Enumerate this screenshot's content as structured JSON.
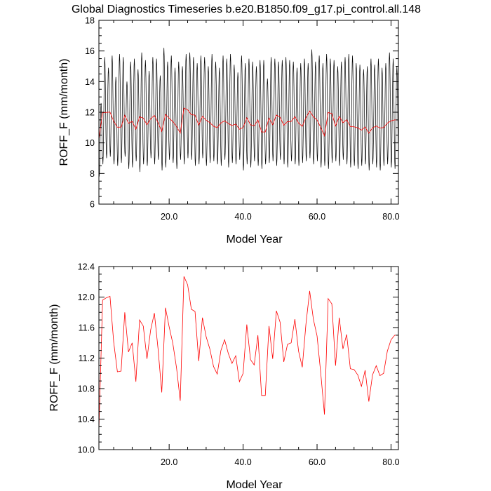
{
  "title": "Global Diagnostics Timeseries b.e20.B1850.f09_g17.pi_control.all.148",
  "colors": {
    "monthly": "#000000",
    "annual": "#ff0000",
    "frame": "#000000"
  },
  "chart_data": [
    {
      "type": "line",
      "xlabel": "Model Year",
      "ylabel": "ROFF_F (mm/month)",
      "xlim": [
        1,
        82
      ],
      "ylim": [
        6,
        18
      ],
      "x_ticks": [
        20,
        40,
        60,
        80
      ],
      "x_tick_labels": [
        "20.0",
        "40.0",
        "60.0",
        "80.0"
      ],
      "y_ticks": [
        6,
        8,
        10,
        12,
        14,
        16,
        18
      ],
      "y_tick_labels": [
        "6",
        "8",
        "10",
        "12",
        "14",
        "16",
        "18"
      ],
      "grid": false,
      "series": [
        {
          "kind": "monthly",
          "description_values": "monthly values follow a seasonal cycle between the yearly minima and maxima",
          "yearly_max": [
            12.6,
            15.6,
            14.9,
            15.7,
            14.3,
            15.8,
            15.6,
            14.0,
            15.3,
            15.5,
            14.8,
            15.9,
            15.4,
            14.7,
            15.6,
            15.5,
            14.4,
            16.2,
            15.3,
            15.7,
            14.9,
            15.3,
            15.0,
            15.8,
            15.9,
            15.6,
            15.2,
            15.7,
            15.6,
            15.0,
            15.8,
            15.3,
            14.9,
            15.7,
            15.5,
            15.8,
            15.1,
            14.6,
            15.7,
            15.2,
            15.5,
            15.3,
            15.0,
            15.4,
            15.4,
            14.2,
            15.6,
            15.5,
            15.3,
            15.4,
            15.6,
            15.4,
            15.3,
            14.9,
            15.2,
            15.5,
            15.2,
            16.1,
            15.3,
            15.7,
            15.2,
            15.8,
            15.5,
            15.4,
            15.0,
            15.3,
            15.6,
            15.8,
            15.7,
            15.2,
            15.1,
            14.8,
            15.0,
            15.5,
            15.1,
            15.5,
            14.9,
            15.2,
            15.9,
            15.5,
            15.0
          ],
          "yearly_min": [
            7.8,
            8.6,
            9.0,
            9.1,
            8.6,
            8.5,
            8.7,
            9.1,
            8.3,
            8.4,
            8.8,
            8.1,
            8.6,
            8.5,
            9.0,
            8.6,
            8.9,
            8.2,
            8.4,
            8.9,
            8.7,
            8.3,
            8.9,
            8.6,
            9.0,
            8.9,
            8.5,
            8.6,
            9.0,
            8.5,
            8.7,
            8.8,
            8.6,
            8.5,
            8.9,
            8.4,
            8.7,
            8.6,
            8.9,
            8.2,
            8.6,
            8.4,
            8.8,
            8.5,
            8.3,
            8.6,
            8.7,
            8.8,
            8.5,
            8.9,
            8.6,
            8.4,
            8.8,
            8.6,
            8.5,
            8.7,
            8.8,
            9.0,
            8.6,
            8.8,
            8.4,
            8.5,
            8.3,
            8.7,
            8.8,
            8.5,
            8.9,
            8.6,
            8.4,
            8.5,
            8.3,
            8.5,
            8.6,
            8.2,
            8.6,
            8.4,
            8.2,
            8.5,
            8.6,
            8.4,
            8.3
          ]
        },
        {
          "kind": "annual",
          "x": [
            1,
            2,
            3,
            4,
            5,
            6,
            7,
            8,
            9,
            10,
            11,
            12,
            13,
            14,
            15,
            16,
            17,
            18,
            19,
            20,
            21,
            22,
            23,
            24,
            25,
            26,
            27,
            28,
            29,
            30,
            31,
            32,
            33,
            34,
            35,
            36,
            37,
            38,
            39,
            40,
            41,
            42,
            43,
            44,
            45,
            46,
            47,
            48,
            49,
            50,
            51,
            52,
            53,
            54,
            55,
            56,
            57,
            58,
            59,
            60,
            61,
            62,
            63,
            64,
            65,
            66,
            67,
            68,
            69,
            70,
            71,
            72,
            73,
            74,
            75,
            76,
            77,
            78,
            79,
            80,
            81,
            82
          ],
          "values": [
            10.26,
            11.96,
            11.99,
            12.01,
            11.41,
            11.02,
            11.03,
            11.8,
            11.28,
            11.4,
            10.89,
            11.7,
            11.62,
            11.19,
            11.57,
            11.79,
            11.32,
            10.75,
            11.86,
            11.61,
            11.39,
            11.07,
            10.64,
            12.27,
            12.16,
            11.84,
            11.81,
            11.16,
            11.73,
            11.48,
            11.32,
            11.09,
            10.99,
            11.3,
            11.44,
            11.26,
            11.13,
            11.23,
            10.89,
            11.0,
            11.64,
            11.18,
            11.11,
            11.5,
            10.71,
            10.71,
            11.62,
            11.19,
            11.82,
            11.67,
            11.15,
            11.38,
            11.4,
            11.71,
            11.29,
            11.08,
            11.65,
            12.08,
            11.71,
            11.49,
            11.0,
            10.46,
            11.98,
            11.91,
            11.1,
            11.73,
            11.32,
            11.51,
            11.06,
            11.05,
            10.98,
            10.83,
            11.04,
            10.63,
            10.98,
            11.1,
            10.97,
            11.0,
            11.29,
            11.44,
            11.5,
            11.5
          ]
        }
      ]
    },
    {
      "type": "line",
      "xlabel": "Model Year",
      "ylabel": "ROFF_F (mm/month)",
      "xlim": [
        1,
        82
      ],
      "ylim": [
        10.0,
        12.4
      ],
      "x_ticks": [
        20,
        40,
        60,
        80
      ],
      "x_tick_labels": [
        "20.0",
        "40.0",
        "60.0",
        "80.0"
      ],
      "y_ticks": [
        10.0,
        10.4,
        10.8,
        11.2,
        11.6,
        12.0,
        12.4
      ],
      "y_tick_labels": [
        "10.0",
        "10.4",
        "10.8",
        "11.2",
        "11.6",
        "12.0",
        "12.4"
      ],
      "grid": false,
      "series": [
        {
          "kind": "annual",
          "x": [
            1,
            2,
            3,
            4,
            5,
            6,
            7,
            8,
            9,
            10,
            11,
            12,
            13,
            14,
            15,
            16,
            17,
            18,
            19,
            20,
            21,
            22,
            23,
            24,
            25,
            26,
            27,
            28,
            29,
            30,
            31,
            32,
            33,
            34,
            35,
            36,
            37,
            38,
            39,
            40,
            41,
            42,
            43,
            44,
            45,
            46,
            47,
            48,
            49,
            50,
            51,
            52,
            53,
            54,
            55,
            56,
            57,
            58,
            59,
            60,
            61,
            62,
            63,
            64,
            65,
            66,
            67,
            68,
            69,
            70,
            71,
            72,
            73,
            74,
            75,
            76,
            77,
            78,
            79,
            80,
            81,
            82
          ],
          "values": [
            10.26,
            11.96,
            11.99,
            12.01,
            11.41,
            11.02,
            11.03,
            11.8,
            11.28,
            11.4,
            10.89,
            11.7,
            11.62,
            11.19,
            11.57,
            11.79,
            11.32,
            10.75,
            11.86,
            11.61,
            11.39,
            11.07,
            10.64,
            12.27,
            12.16,
            11.84,
            11.81,
            11.16,
            11.73,
            11.48,
            11.32,
            11.09,
            10.99,
            11.3,
            11.44,
            11.26,
            11.13,
            11.23,
            10.89,
            11.0,
            11.64,
            11.18,
            11.11,
            11.5,
            10.71,
            10.71,
            11.62,
            11.19,
            11.82,
            11.67,
            11.15,
            11.38,
            11.4,
            11.71,
            11.29,
            11.08,
            11.65,
            12.08,
            11.71,
            11.49,
            11.0,
            10.46,
            11.98,
            11.91,
            11.1,
            11.73,
            11.32,
            11.51,
            11.06,
            11.05,
            10.98,
            10.83,
            11.04,
            10.63,
            10.98,
            11.1,
            10.97,
            11.0,
            11.29,
            11.44,
            11.5,
            11.5
          ]
        }
      ]
    }
  ]
}
